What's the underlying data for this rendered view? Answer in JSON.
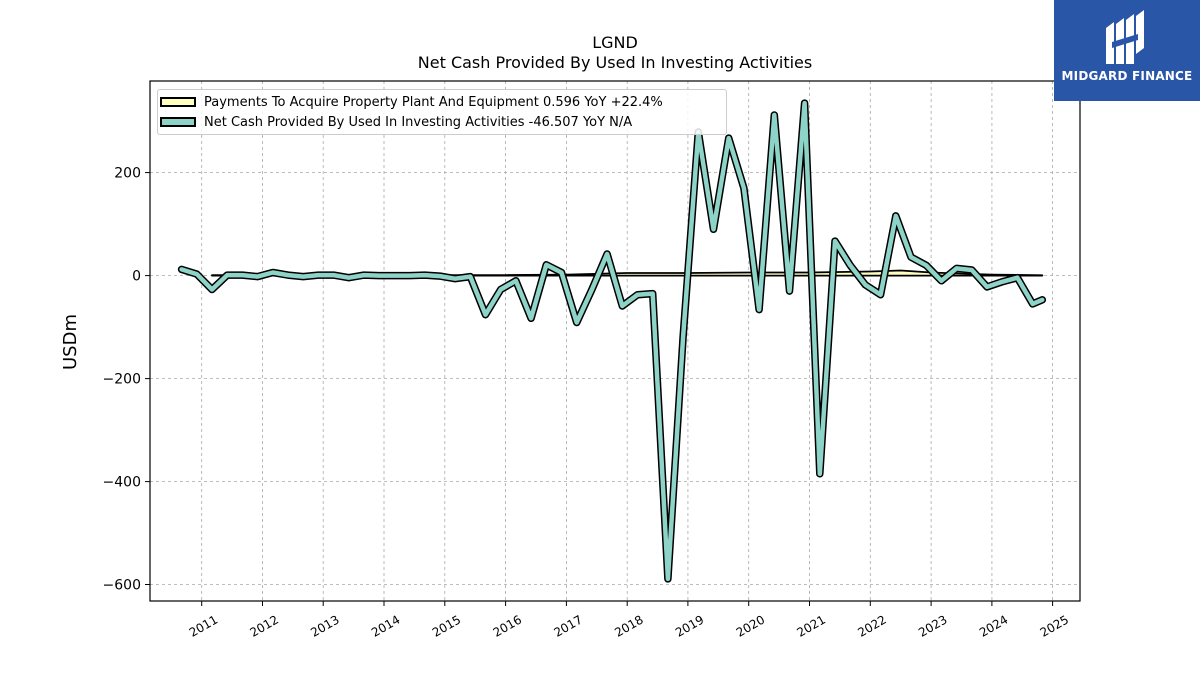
{
  "chart_data": {
    "type": "line",
    "title": "LGND",
    "subtitle": "Net Cash Provided By Used In Investing Activities",
    "xlabel": "",
    "ylabel": "USDm",
    "xlim": [
      2010.15,
      2025.45
    ],
    "ylim": [
      -632,
      378
    ],
    "yticks": [
      200,
      0,
      -200,
      -400,
      -600
    ],
    "ytick_labels": [
      "200",
      "0",
      "−200",
      "−400",
      "−600"
    ],
    "xticks": [
      2011,
      2012,
      2013,
      2014,
      2015,
      2016,
      2017,
      2018,
      2019,
      2020,
      2021,
      2022,
      2023,
      2024,
      2025
    ],
    "xtick_labels": [
      "2011",
      "2012",
      "2013",
      "2014",
      "2015",
      "2016",
      "2017",
      "2018",
      "2019",
      "2020",
      "2021",
      "2022",
      "2023",
      "2024",
      "2025"
    ],
    "grid": true,
    "legend_position": "top-left",
    "series": [
      {
        "name": "Payments To Acquire Property Plant And Equipment",
        "legend_label": "Payments To Acquire Property Plant And Equipment  0.596 YoY +22.4%",
        "color": "#ffffbf",
        "style": "band",
        "x": [
          2011.17,
          2012.0,
          2013.0,
          2014.0,
          2015.0,
          2015.5,
          2016.0,
          2017.0,
          2018.0,
          2019.0,
          2020.0,
          2021.0,
          2022.0,
          2022.5,
          2023.0,
          2023.5,
          2024.0,
          2024.83
        ],
        "values": [
          1,
          1,
          1,
          1,
          1,
          1,
          1,
          2,
          5,
          5,
          6,
          6,
          8,
          10,
          6,
          4,
          2,
          0.6
        ]
      },
      {
        "name": "Net Cash Provided By Used In Investing Activities",
        "legend_label": "Net Cash Provided By Used In Investing Activities  -46.507 YoY N/A",
        "color": "#8dd3c7",
        "style": "line",
        "x": [
          2010.67,
          2010.92,
          2011.17,
          2011.42,
          2011.67,
          2011.92,
          2012.17,
          2012.42,
          2012.67,
          2012.92,
          2013.17,
          2013.42,
          2013.67,
          2013.92,
          2014.17,
          2014.42,
          2014.67,
          2014.92,
          2015.17,
          2015.42,
          2015.67,
          2015.92,
          2016.17,
          2016.42,
          2016.67,
          2016.92,
          2017.17,
          2017.42,
          2017.67,
          2017.92,
          2018.17,
          2018.42,
          2018.67,
          2018.92,
          2019.17,
          2019.42,
          2019.67,
          2019.92,
          2020.17,
          2020.42,
          2020.67,
          2020.92,
          2021.17,
          2021.42,
          2021.67,
          2021.92,
          2022.17,
          2022.42,
          2022.67,
          2022.92,
          2023.17,
          2023.42,
          2023.67,
          2023.92,
          2024.17,
          2024.42,
          2024.67,
          2024.83
        ],
        "values": [
          12,
          3,
          -27,
          1,
          1,
          -2,
          6,
          1,
          -2,
          1,
          1,
          -4,
          1,
          0,
          0,
          0,
          1,
          -1,
          -6,
          -2,
          -76,
          -27,
          -10,
          -83,
          21,
          6,
          -91,
          -27,
          42,
          -59,
          -37,
          -35,
          -589,
          -119,
          279,
          90,
          267,
          170,
          -66,
          312,
          -30,
          335,
          -385,
          67,
          20,
          -18,
          -37,
          116,
          36,
          20,
          -10,
          14,
          11,
          -22,
          -12,
          -4,
          -55,
          -47
        ]
      }
    ]
  },
  "logo": {
    "text": "MIDGARD FINANCE",
    "background": "#2a56a8",
    "icon": "midgard-logo-icon"
  }
}
